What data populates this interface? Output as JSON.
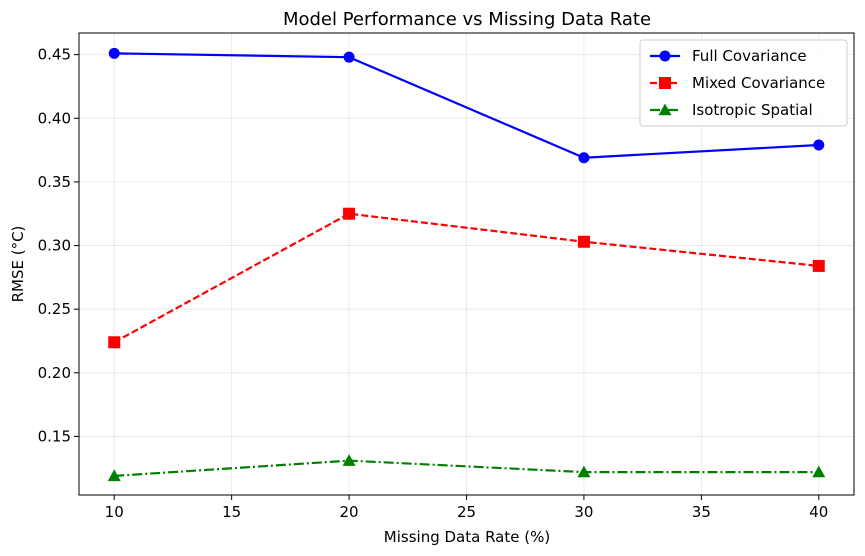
{
  "chart_data": {
    "type": "line",
    "title": "Model Performance vs Missing Data Rate",
    "xlabel": "Missing Data Rate (%)",
    "ylabel": "RMSE (°C)",
    "x": [
      10,
      20,
      30,
      40
    ],
    "xlim": [
      8.5,
      41.5
    ],
    "ylim": [
      0.104,
      0.467
    ],
    "xticks": [
      10,
      15,
      20,
      25,
      30,
      35,
      40
    ],
    "yticks": [
      0.15,
      0.2,
      0.25,
      0.3,
      0.35,
      0.4,
      0.45
    ],
    "ytick_labels": [
      "0.15",
      "0.20",
      "0.25",
      "0.30",
      "0.35",
      "0.40",
      "0.45"
    ],
    "grid": true,
    "legend_position": "top-right",
    "series": [
      {
        "name": "Full Covariance",
        "values": [
          0.451,
          0.448,
          0.369,
          0.379
        ],
        "color": "#0000ff",
        "marker": "circle",
        "linestyle": "solid"
      },
      {
        "name": "Mixed Covariance",
        "values": [
          0.224,
          0.325,
          0.303,
          0.284
        ],
        "color": "#ff0000",
        "marker": "square",
        "linestyle": "dashed"
      },
      {
        "name": "Isotropic Spatial",
        "values": [
          0.119,
          0.131,
          0.122,
          0.122
        ],
        "color": "#008000",
        "marker": "triangle",
        "linestyle": "dashdot"
      }
    ]
  }
}
